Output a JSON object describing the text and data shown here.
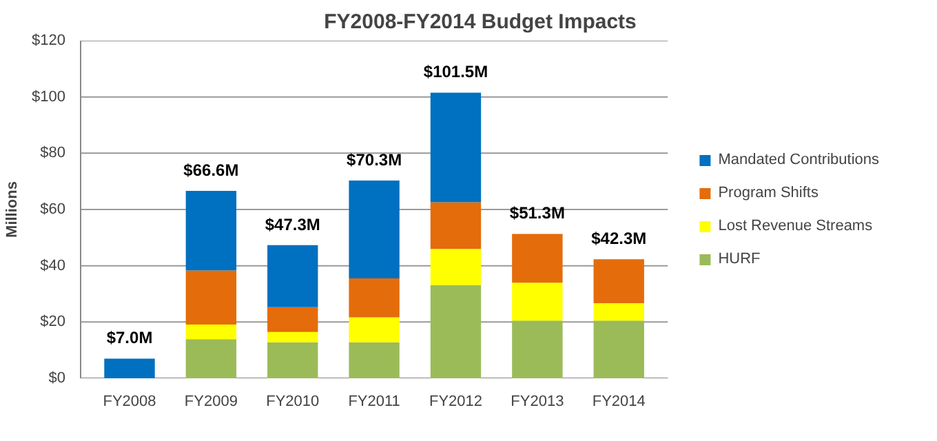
{
  "chart_data": {
    "type": "bar",
    "stacked": true,
    "title": "FY2008-FY2014 Budget Impacts",
    "ylabel": "Millions",
    "categories": [
      "FY2008",
      "FY2009",
      "FY2010",
      "FY2011",
      "FY2012",
      "FY2013",
      "FY2014"
    ],
    "series": [
      {
        "name": "HURF",
        "color": "#9bbb59",
        "values": [
          null,
          13.9,
          12.8,
          12.8,
          33.1,
          20.5,
          20.5
        ]
      },
      {
        "name": "Lost Revenue Streams",
        "color": "#ffff00",
        "values": [
          null,
          5.2,
          3.7,
          8.9,
          12.9,
          13.5,
          6.2
        ]
      },
      {
        "name": "Program Shifts",
        "color": "#e46c0a",
        "values": [
          null,
          19.2,
          8.8,
          13.8,
          16.6,
          17.3,
          15.6
        ]
      },
      {
        "name": "Mandated Contributions",
        "color": "#0070c0",
        "values": [
          7.0,
          28.3,
          22.0,
          34.8,
          38.9,
          null,
          null
        ]
      }
    ],
    "totals": [
      "$7.0M",
      "$66.6M",
      "$47.3M",
      "$70.3M",
      "$101.5M",
      "$51.3M",
      "$42.3M"
    ],
    "ylim": [
      0,
      120
    ],
    "yticks": [
      {
        "value": 0,
        "label": "$0"
      },
      {
        "value": 20,
        "label": "$20"
      },
      {
        "value": 40,
        "label": "$40"
      },
      {
        "value": 60,
        "label": "$60"
      },
      {
        "value": 80,
        "label": "$80"
      },
      {
        "value": 100,
        "label": "$100"
      },
      {
        "value": 120,
        "label": "$120"
      }
    ],
    "grid": "y",
    "legend": "right"
  }
}
